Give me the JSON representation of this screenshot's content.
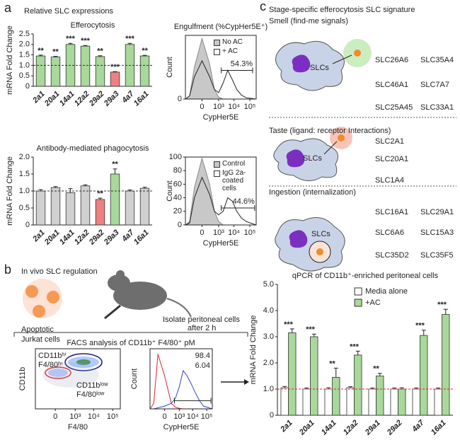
{
  "panel_labels": [
    "a",
    "b",
    "c"
  ],
  "a": {
    "title": "Relative SLC expressions"
  },
  "b": {
    "title": "In vivo SLC regulation",
    "cells_label": [
      "Apoptotic",
      "Jurkat cells"
    ],
    "isolate": [
      "Isolate peritoneal cells",
      "after 2 h"
    ],
    "facs": "FACS analysis of CD11b⁺ F4/80⁺ pM"
  },
  "c": {
    "title": "Stage-specific efferocytosis SLC signature",
    "stages": [
      {
        "title": "Smell (find-me signals)",
        "cell_label": "SLCs",
        "genes": [
          [
            {
              "name": "SLC26A6",
              "color": "#e8212b"
            },
            {
              "name": "SLC35A4",
              "color": "#e8212b"
            }
          ],
          [
            {
              "name": "SLC46A1",
              "color": "#e8212b"
            },
            {
              "name": "SLC7A7",
              "color": "#e8212b"
            }
          ],
          [
            {
              "name": "SLC25A45",
              "color": "#2b2bd1"
            },
            {
              "name": "SLC33A1",
              "color": "#2b2bd1"
            }
          ]
        ]
      },
      {
        "title": "Taste (ligand: receptor Interactions)",
        "cell_label": "SLCs",
        "genes": [
          [
            {
              "name": "SLC2A1",
              "color": "#e8212b"
            }
          ],
          [
            {
              "name": "SLC20A1",
              "color": "#e8212b"
            }
          ],
          [
            {
              "name": "SLC1A4",
              "color": "#2b2bd1"
            }
          ]
        ]
      },
      {
        "title": "Ingestion (internalization)",
        "cell_label": "SLCs",
        "genes": [
          [
            {
              "name": "SLC16A1",
              "color": "#e8212b"
            },
            {
              "name": "SLC29A1",
              "color": "#e8212b"
            }
          ],
          [
            {
              "name": "SLC6A6",
              "color": "#e8212b"
            },
            {
              "name": "SLC15A3",
              "color": "#2b2bd1"
            }
          ],
          [
            {
              "name": "SLC35D2",
              "color": "#2b2bd1"
            },
            {
              "name": "SLC35F5",
              "color": "#2b2bd1"
            }
          ]
        ]
      }
    ]
  },
  "chart_data": [
    {
      "type": "bar",
      "title": "Efferocytosis",
      "ylabel": "mRNA Fold Change",
      "categories": [
        "2a1",
        "20a1",
        "14a1",
        "12a2",
        "29a2",
        "29a3",
        "4a7",
        "16a1"
      ],
      "values": [
        1.45,
        1.4,
        2.0,
        1.92,
        1.42,
        0.68,
        2.0,
        1.45
      ],
      "errors": [
        0.04,
        0.03,
        0.05,
        0.03,
        0.04,
        0.02,
        0.05,
        0.03
      ],
      "colors": [
        "#a8d89a",
        "#a8d89a",
        "#a8d89a",
        "#a8d89a",
        "#a8d89a",
        "#f08080",
        "#a8d89a",
        "#a8d89a"
      ],
      "annotations": [
        "**",
        "**",
        "***",
        "***",
        "**",
        "***",
        "***",
        "**"
      ],
      "ylim": [
        0,
        2.5
      ],
      "yticks": [
        0,
        0.5,
        {
          "value": 1,
          "label": "1.0"
        },
        1.5,
        {
          "value": 2,
          "label": "2.0"
        },
        2.5
      ],
      "reference_line": 1
    },
    {
      "type": "bar",
      "title": "Antibody-mediated phagocytosis",
      "ylabel": "mRNA Fold Change",
      "categories": [
        "2a1",
        "20a1",
        "14a1",
        "12a2",
        "29a2",
        "29a3",
        "4a7",
        "16a1"
      ],
      "values": [
        1.0,
        1.1,
        0.95,
        1.15,
        0.75,
        1.5,
        1.0,
        1.08
      ],
      "errors": [
        0.04,
        0.03,
        0.12,
        0.03,
        0.04,
        0.15,
        0.03,
        0.03
      ],
      "colors": [
        "#d0d0d0",
        "#d0d0d0",
        "#d0d0d0",
        "#d0d0d0",
        "#f08080",
        "#a8d89a",
        "#d0d0d0",
        "#d0d0d0"
      ],
      "annotations": [
        null,
        null,
        null,
        null,
        "**",
        "**",
        null,
        null
      ],
      "ylim": [
        0,
        2.0
      ],
      "yticks": [
        0,
        0.5,
        {
          "value": 1,
          "label": "1.0"
        },
        1.5,
        {
          "value": 2,
          "label": "2.0"
        }
      ],
      "reference_line": 1
    },
    {
      "type": "line",
      "title": "Engulfment (%CypHer5E⁺)",
      "xlabel": "CypHer5E",
      "ylabel": "Count",
      "xscale": "biexponential",
      "x": [
        -1000,
        -500,
        -200,
        0,
        200,
        500,
        1000,
        2000,
        4000,
        8000,
        15000,
        30000,
        60000,
        250000
      ],
      "series": [
        {
          "name": "No AC",
          "color": "#888888",
          "fill": "#c8c8c8",
          "values": [
            0,
            5,
            50,
            95,
            55,
            15,
            3,
            0,
            0,
            0,
            0,
            0,
            0,
            0
          ]
        },
        {
          "name": "+ AC",
          "color": "#222222",
          "fill": "none",
          "values": [
            0,
            5,
            35,
            60,
            35,
            15,
            10,
            25,
            45,
            30,
            15,
            6,
            2,
            0
          ]
        }
      ],
      "xlim": [
        -1000,
        250000
      ],
      "xticks": [
        {
          "value": 0,
          "label": "0"
        },
        {
          "value": 1000,
          "label": "10³"
        },
        {
          "value": 10000,
          "label": "10⁴"
        },
        {
          "value": 100000,
          "label": "10⁵"
        }
      ],
      "ylim": [
        0,
        100
      ],
      "yticks": [
        0
      ],
      "gate": {
        "x": [
          1500,
          150000
        ],
        "y": 45,
        "label": "54.3%"
      }
    },
    {
      "type": "line",
      "xlabel": "CypHer5E",
      "ylabel": "Count",
      "xscale": "biexponential",
      "x": [
        -1000,
        -500,
        -200,
        0,
        200,
        500,
        1000,
        2000,
        4000,
        8000,
        15000,
        30000,
        60000,
        250000
      ],
      "series": [
        {
          "name": "Control",
          "color": "#888888",
          "fill": "#c8c8c8",
          "values": [
            0,
            5,
            55,
            98,
            60,
            20,
            5,
            0,
            0,
            0,
            0,
            0,
            0,
            0
          ]
        },
        {
          "name": "IgG 2a-coated cells",
          "color": "#222222",
          "fill": "none",
          "values": [
            0,
            3,
            40,
            70,
            45,
            20,
            15,
            20,
            40,
            35,
            20,
            10,
            5,
            0
          ]
        }
      ],
      "xlim": [
        -1000,
        250000
      ],
      "xticks": [
        {
          "value": 0,
          "label": "0"
        },
        {
          "value": 1000,
          "label": "10³"
        },
        {
          "value": 10000,
          "label": "10⁴"
        },
        {
          "value": 100000,
          "label": "10⁵"
        }
      ],
      "ylim": [
        0,
        100
      ],
      "yticks": [
        0,
        20,
        40,
        60,
        80,
        100
      ],
      "gate": {
        "x": [
          1500,
          200000
        ],
        "y": 25,
        "label": "44.6%"
      }
    },
    {
      "type": "scatter",
      "xlabel": "F4/80",
      "ylabel": "CD11b",
      "xscale": "biexponential",
      "xlim": [
        -1000,
        250000
      ],
      "xticks": [
        {
          "value": 0,
          "label": "0"
        },
        {
          "value": 1000,
          "label": "10³"
        },
        {
          "value": 10000,
          "label": "10⁴"
        },
        {
          "value": 100000,
          "label": "10⁵"
        }
      ],
      "annotations": [
        {
          "lines": [
            "CD11bʰⁱ",
            "F4/80ʰⁱ"
          ],
          "color": "#2b2bd1"
        },
        {
          "lines": [
            "CD11bˡᵒʷ",
            "F4/80ˡᵒʷ"
          ],
          "color": "#e8212b"
        }
      ]
    },
    {
      "type": "line",
      "xlabel": "CypHer5E",
      "ylabel": "Count",
      "xscale": "biexponential",
      "x": [
        -1000,
        -500,
        -200,
        0,
        200,
        500,
        1000,
        2000,
        4000,
        8000,
        15000,
        30000,
        60000,
        250000
      ],
      "series": [
        {
          "color": "#e8212b",
          "fill": "none",
          "values": [
            0,
            10,
            100,
            60,
            10,
            3,
            1,
            0,
            0,
            0,
            0,
            0,
            0,
            0
          ]
        },
        {
          "color": "#3344cc",
          "fill": "none",
          "values": [
            0,
            0,
            2,
            5,
            10,
            20,
            40,
            70,
            60,
            45,
            30,
            15,
            5,
            0
          ]
        }
      ],
      "xlim": [
        -1000,
        250000
      ],
      "xticks": [
        {
          "value": 0,
          "label": "0"
        },
        {
          "value": 1000,
          "label": "10³"
        },
        {
          "value": 10000,
          "label": "10⁴"
        },
        {
          "value": 100000,
          "label": "10⁵"
        }
      ],
      "ylim": [
        0,
        110
      ],
      "gate": {
        "x": [
          400,
          200000
        ],
        "y": 15
      },
      "annotations": [
        {
          "text": "98.4",
          "color": "#2b2bd1"
        },
        {
          "text": "6.04",
          "color": "#e8212b"
        }
      ]
    },
    {
      "type": "bar",
      "title": "qPCR of CD11b⁺-enriched peritoneal cells",
      "ylabel": "mRNA Fold Change",
      "categories": [
        "2a1",
        "20a1",
        "14a1",
        "12a2",
        "29a1",
        "29a2",
        "4a7",
        "16a1"
      ],
      "series": [
        {
          "name": "Media alone",
          "color": "#ffffff",
          "values": [
            1.05,
            1.0,
            1.0,
            1.05,
            1.0,
            1.0,
            1.0,
            1.0
          ],
          "errors": [
            0.05,
            0.04,
            0.05,
            0.04,
            0.04,
            0.04,
            0.04,
            0.04
          ]
        },
        {
          "name": "+AC",
          "color": "#a8d89a",
          "values": [
            3.15,
            3.0,
            1.45,
            2.3,
            1.5,
            1.0,
            3.05,
            3.85
          ],
          "errors": [
            0.15,
            0.1,
            0.35,
            0.15,
            0.1,
            0.05,
            0.2,
            0.2
          ]
        }
      ],
      "annotations": [
        "***",
        "***",
        "**",
        "***",
        "**",
        null,
        "***",
        "***"
      ],
      "ylim": [
        0,
        5
      ],
      "yticks": [
        0,
        {
          "value": 1,
          "label": "1.0"
        },
        {
          "value": 2,
          "label": "2.0"
        },
        {
          "value": 3,
          "label": "3.0"
        },
        {
          "value": 4,
          "label": "4.0"
        },
        {
          "value": 5,
          "label": "5.0"
        }
      ],
      "reference_line": 1,
      "reference_color": "#e8212b"
    }
  ]
}
